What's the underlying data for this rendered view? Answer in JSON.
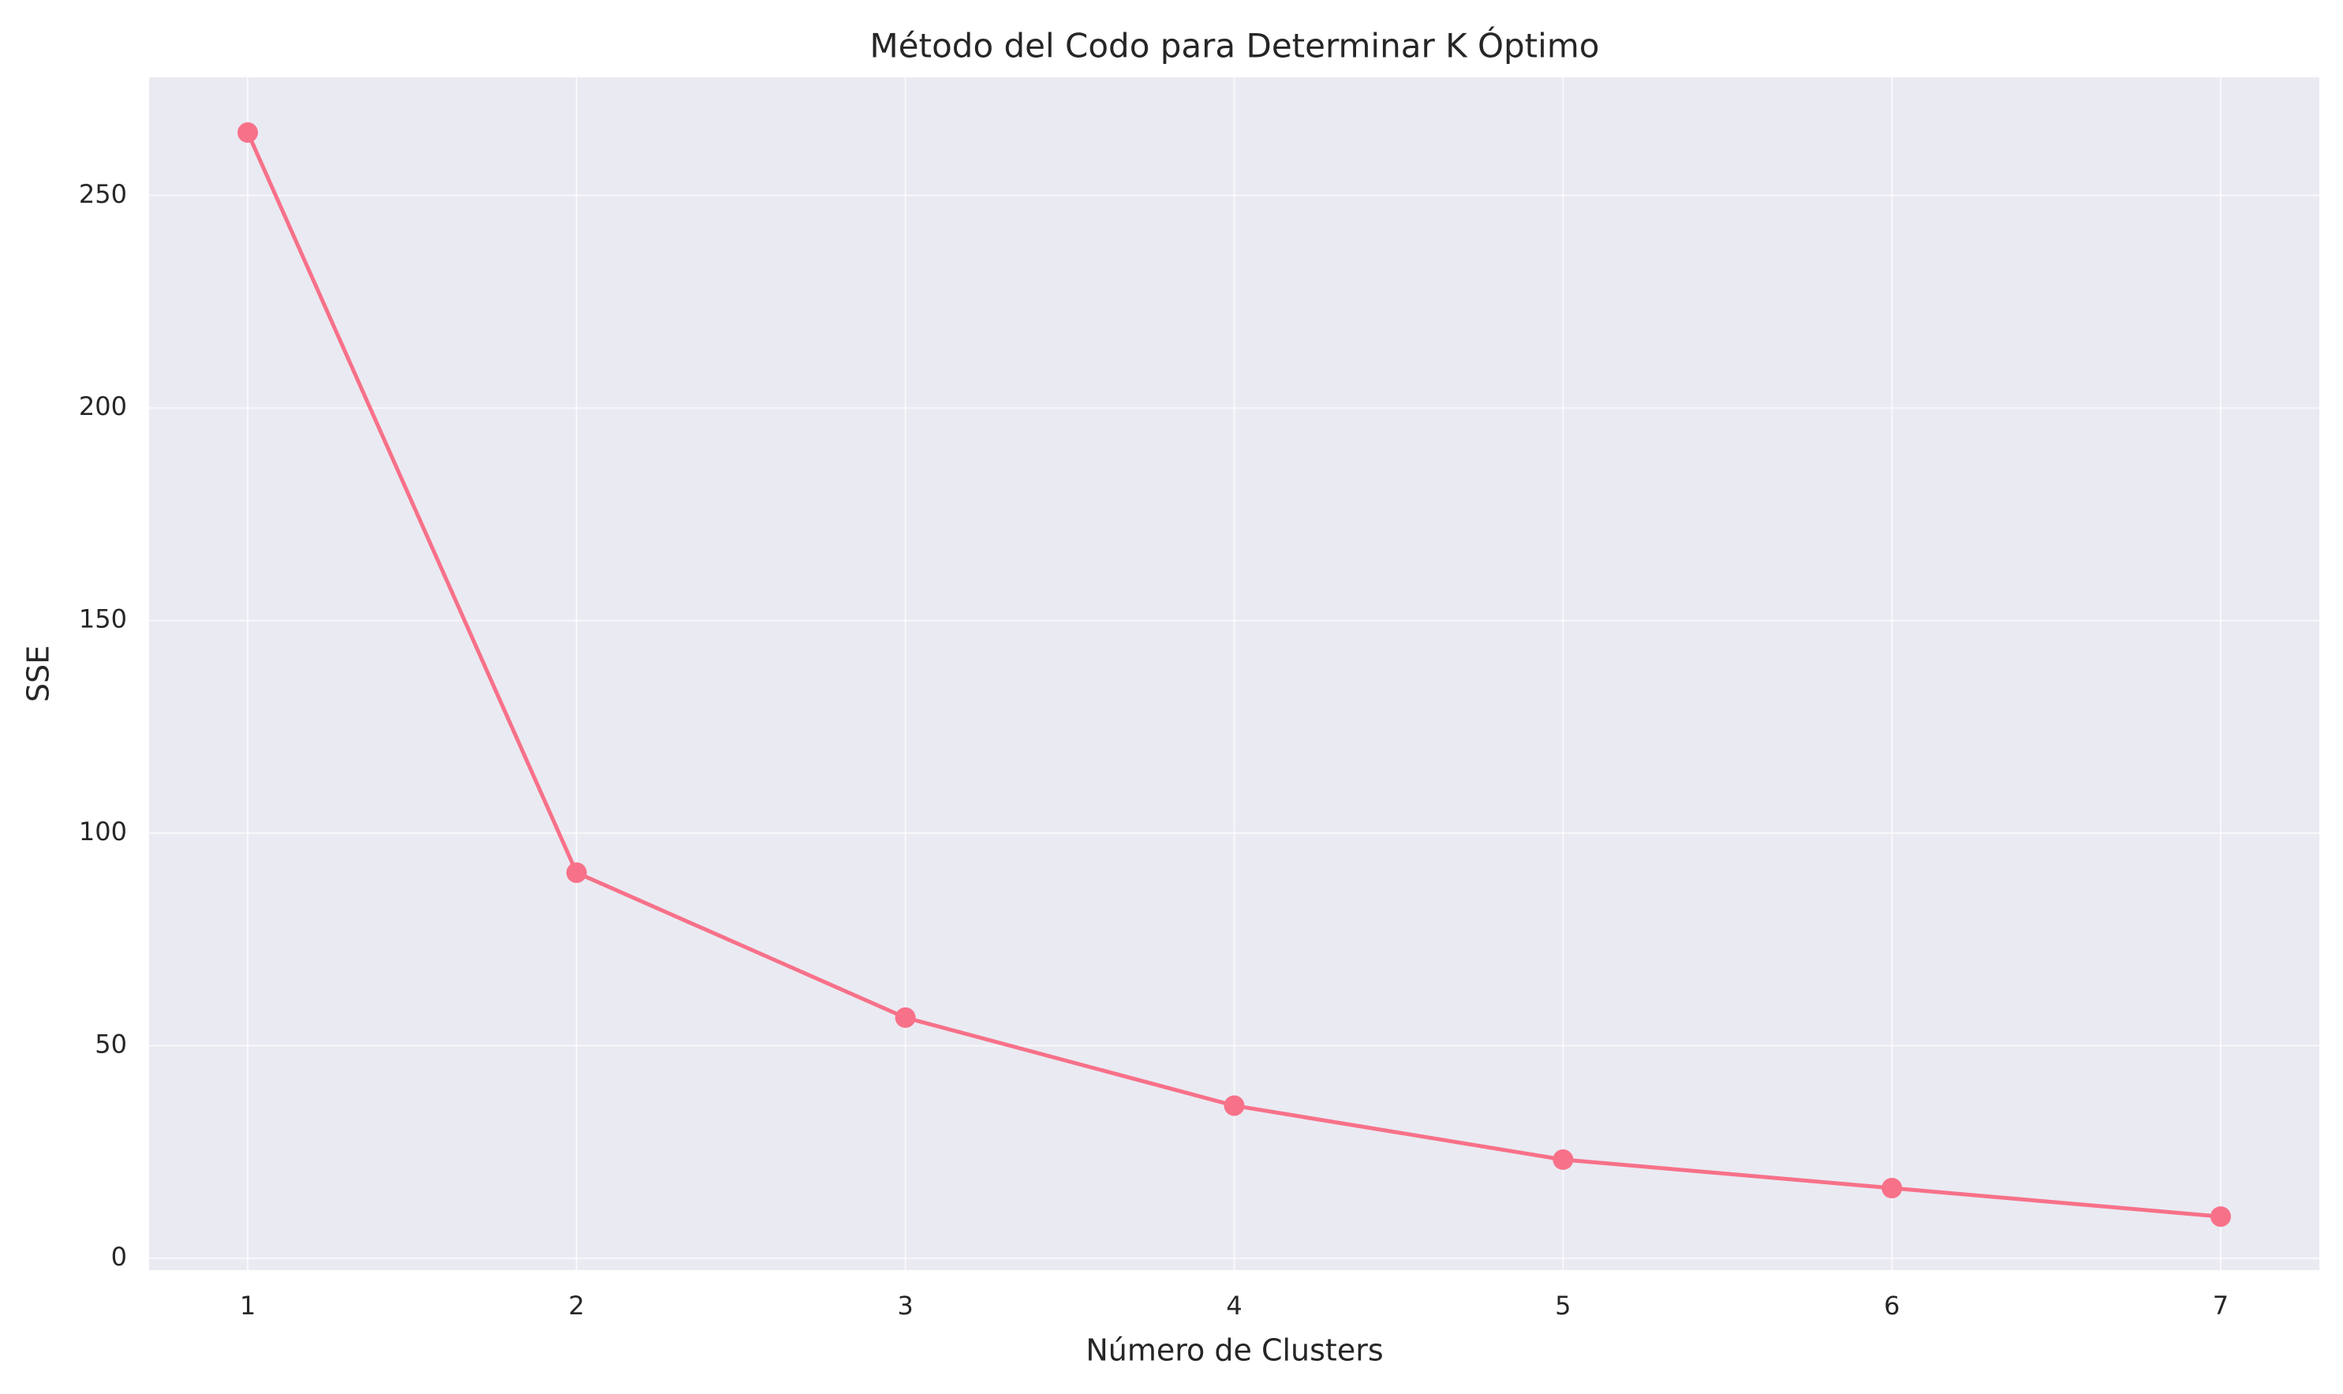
{
  "chart_data": {
    "type": "line",
    "title": "Método del Codo para Determinar K Óptimo",
    "x_label": "Número de Clusters",
    "y_label": "SSE",
    "x": [
      1,
      2,
      3,
      4,
      5,
      6,
      7
    ],
    "series": [
      {
        "name": "SSE",
        "color": "#f77189",
        "values": [
          264.8,
          90.7,
          56.6,
          35.9,
          23.2,
          16.5,
          9.8
        ]
      }
    ],
    "xlim": [
      0.7,
      7.3
    ],
    "ylim": [
      -2.8,
      277.8
    ],
    "xticks": [
      1,
      2,
      3,
      4,
      5,
      6,
      7
    ],
    "yticks": [
      0,
      50,
      100,
      150,
      200,
      250
    ],
    "grid": true,
    "markers": true
  }
}
